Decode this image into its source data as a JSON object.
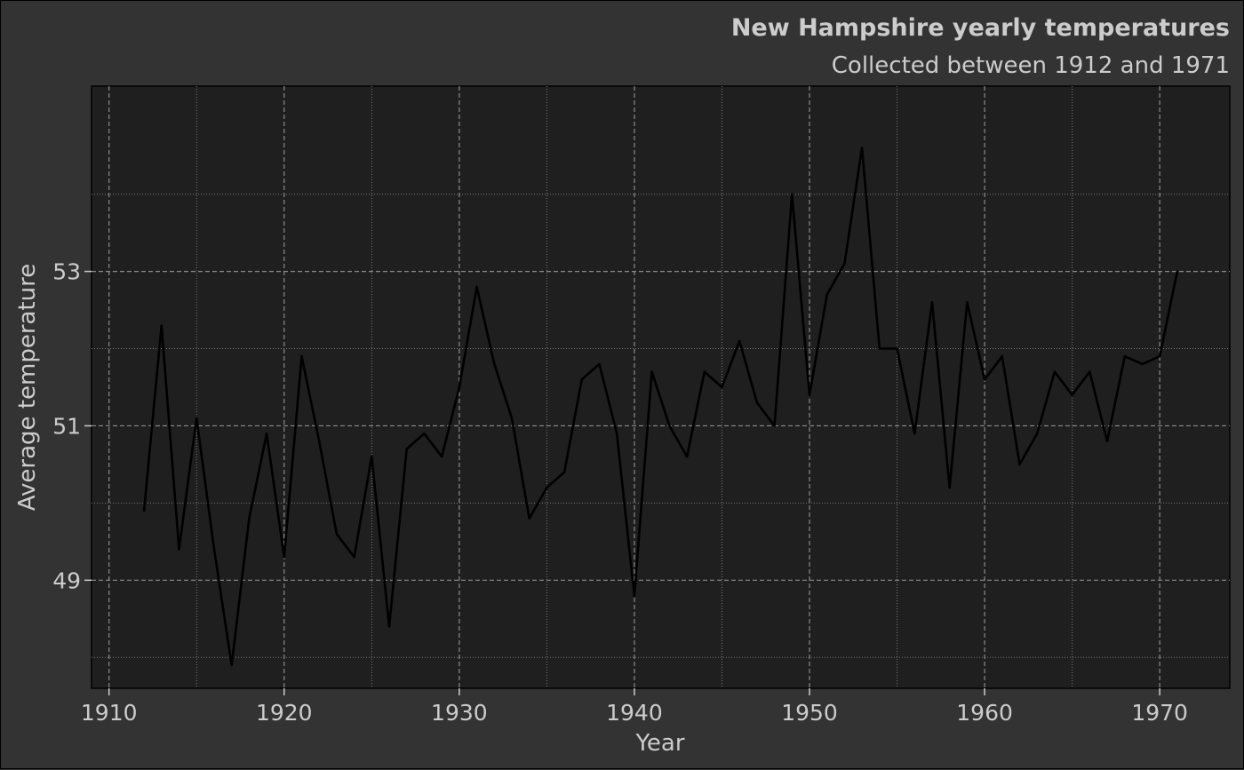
{
  "chart_data": {
    "type": "line",
    "title": "New Hampshire yearly temperatures",
    "subtitle": "Collected between 1912 and 1971",
    "xlabel": "Year",
    "ylabel": "Average temperature",
    "xlim": [
      1909,
      1974
    ],
    "ylim": [
      47.6,
      55.4
    ],
    "x_major_ticks": [
      1910,
      1920,
      1930,
      1940,
      1950,
      1960,
      1970
    ],
    "x_minor_ticks": [
      1915,
      1925,
      1935,
      1945,
      1955,
      1965
    ],
    "y_major_ticks": [
      49,
      51,
      53
    ],
    "y_minor_ticks": [
      48,
      50,
      52,
      54
    ],
    "grid": true,
    "series_color": "#000000",
    "panel_color": "#1f1f1f",
    "background_color": "#333333",
    "text_color": "#cccccc",
    "x": [
      1912,
      1913,
      1914,
      1915,
      1916,
      1917,
      1918,
      1919,
      1920,
      1921,
      1922,
      1923,
      1924,
      1925,
      1926,
      1927,
      1928,
      1929,
      1930,
      1931,
      1932,
      1933,
      1934,
      1935,
      1936,
      1937,
      1938,
      1939,
      1940,
      1941,
      1942,
      1943,
      1944,
      1945,
      1946,
      1947,
      1948,
      1949,
      1950,
      1951,
      1952,
      1953,
      1954,
      1955,
      1956,
      1957,
      1958,
      1959,
      1960,
      1961,
      1962,
      1963,
      1964,
      1965,
      1966,
      1967,
      1968,
      1969,
      1970,
      1971
    ],
    "values": [
      49.9,
      52.3,
      49.4,
      51.1,
      49.4,
      47.9,
      49.8,
      50.9,
      49.3,
      51.9,
      50.8,
      49.6,
      49.3,
      50.6,
      48.4,
      50.7,
      50.9,
      50.6,
      51.5,
      52.8,
      51.8,
      51.1,
      49.8,
      50.2,
      50.4,
      51.6,
      51.8,
      50.9,
      48.8,
      51.7,
      51.0,
      50.6,
      51.7,
      51.5,
      52.1,
      51.3,
      51.0,
      54.0,
      51.4,
      52.7,
      53.1,
      54.6,
      52.0,
      52.0,
      50.9,
      52.6,
      50.2,
      52.6,
      51.6,
      51.9,
      50.5,
      50.9,
      51.7,
      51.4,
      51.7,
      50.8,
      51.9,
      51.8,
      51.9,
      53.0
    ]
  }
}
